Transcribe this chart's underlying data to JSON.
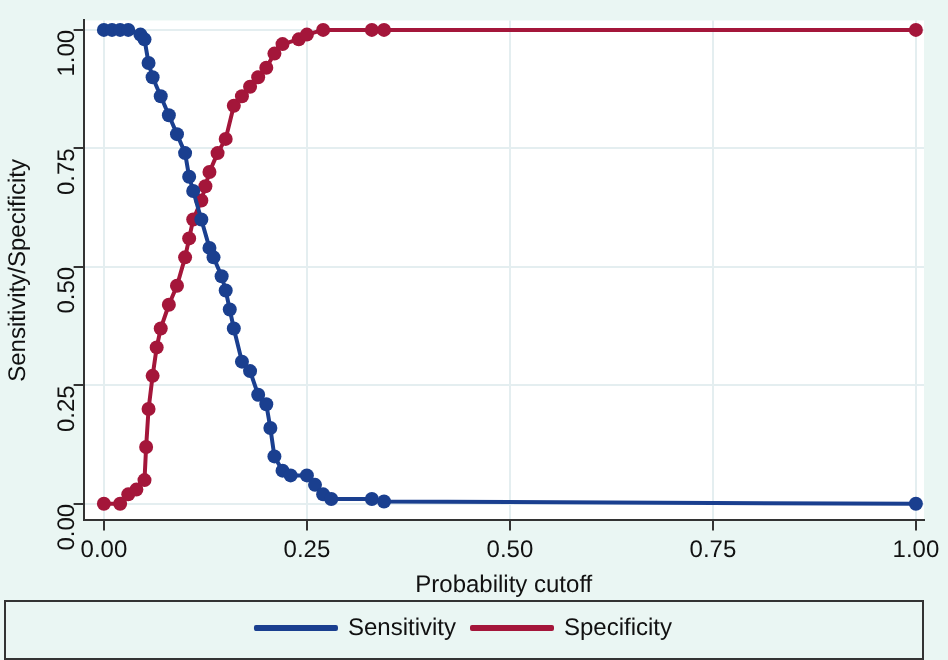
{
  "chart_data": {
    "type": "line",
    "xlabel": "Probability cutoff",
    "ylabel": "Sensitivity/Specificity",
    "xlim": [
      -0.025,
      1.01
    ],
    "xticks": [
      {
        "value": 0,
        "label": "0.00"
      },
      {
        "value": 0.25,
        "label": "0.25"
      },
      {
        "value": 0.5,
        "label": "0.50"
      },
      {
        "value": 0.75,
        "label": "0.75"
      },
      {
        "value": 1,
        "label": "1.00"
      }
    ],
    "ylim": [
      -0.035,
      1.02
    ],
    "yticks": [
      {
        "value": 0,
        "label": "0.00"
      },
      {
        "value": 0.25,
        "label": "0.25"
      },
      {
        "value": 0.5,
        "label": "0.50"
      },
      {
        "value": 0.75,
        "label": "0.75"
      },
      {
        "value": 1,
        "label": "1.00"
      }
    ],
    "grid": true,
    "legend": "bottom",
    "marker": "circle",
    "line_style": "solid",
    "series": [
      {
        "name": "Sensitivity",
        "color": "#1a3f8f",
        "x": [
          0,
          0.01,
          0.02,
          0.03,
          0.045,
          0.05,
          0.055,
          0.06,
          0.07,
          0.08,
          0.09,
          0.1,
          0.105,
          0.11,
          0.12,
          0.13,
          0.135,
          0.145,
          0.15,
          0.155,
          0.16,
          0.17,
          0.18,
          0.19,
          0.2,
          0.205,
          0.21,
          0.22,
          0.23,
          0.25,
          0.26,
          0.27,
          0.28,
          0.33,
          0.345,
          1
        ],
        "values": [
          1,
          1,
          1,
          1,
          0.99,
          0.98,
          0.93,
          0.9,
          0.86,
          0.82,
          0.78,
          0.74,
          0.69,
          0.66,
          0.6,
          0.54,
          0.52,
          0.48,
          0.45,
          0.41,
          0.37,
          0.3,
          0.28,
          0.23,
          0.21,
          0.16,
          0.1,
          0.07,
          0.06,
          0.06,
          0.04,
          0.02,
          0.01,
          0.01,
          0.005,
          0
        ]
      },
      {
        "name": "Specificity",
        "color": "#a4163a",
        "x": [
          0,
          0.02,
          0.03,
          0.04,
          0.05,
          0.052,
          0.055,
          0.06,
          0.065,
          0.07,
          0.08,
          0.09,
          0.1,
          0.105,
          0.11,
          0.12,
          0.125,
          0.13,
          0.14,
          0.15,
          0.16,
          0.17,
          0.18,
          0.19,
          0.2,
          0.21,
          0.22,
          0.24,
          0.25,
          0.27,
          0.33,
          0.345,
          1
        ],
        "values": [
          0,
          0,
          0.02,
          0.03,
          0.05,
          0.12,
          0.2,
          0.27,
          0.33,
          0.37,
          0.42,
          0.46,
          0.52,
          0.56,
          0.6,
          0.64,
          0.67,
          0.7,
          0.74,
          0.77,
          0.84,
          0.86,
          0.88,
          0.9,
          0.92,
          0.95,
          0.97,
          0.98,
          0.99,
          1,
          1,
          1,
          1
        ]
      }
    ]
  }
}
